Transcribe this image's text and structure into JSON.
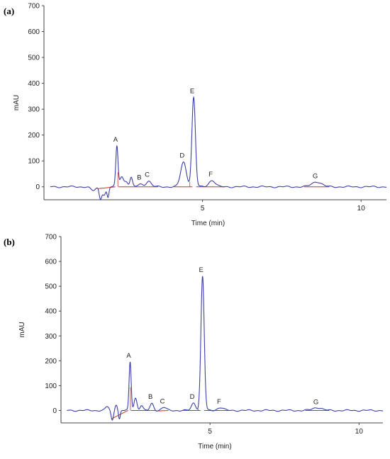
{
  "chart_data": [
    {
      "type": "line",
      "panel_label": "(a)",
      "xlabel": "Time (min)",
      "ylabel": "mAU",
      "xlim": [
        0.0,
        10.8
      ],
      "ylim": [
        -50,
        700
      ],
      "x_ticks": [
        5,
        10
      ],
      "y_ticks": [
        0,
        100,
        200,
        300,
        400,
        500,
        600,
        700
      ],
      "trace_color": "#3b3fa8",
      "baseline_color": "#d03030",
      "baseline_y": 0,
      "noise": [
        {
          "t": 1.55,
          "a": -15,
          "w": 0.08
        },
        {
          "t": 1.78,
          "a": -45,
          "w": 0.04
        },
        {
          "t": 1.9,
          "a": -30,
          "w": 0.05
        },
        {
          "t": 2.02,
          "a": -40,
          "w": 0.03
        },
        {
          "t": 2.45,
          "a": 40,
          "w": 0.06
        },
        {
          "t": 2.6,
          "a": 20,
          "w": 0.05
        },
        {
          "t": 2.75,
          "a": 35,
          "w": 0.04
        }
      ],
      "peaks": [
        {
          "label": "A",
          "time": 2.3,
          "height": 155,
          "width": 0.035
        },
        {
          "label": "B",
          "time": 3.05,
          "height": 10,
          "width": 0.08
        },
        {
          "label": "C",
          "time": 3.3,
          "height": 22,
          "width": 0.08
        },
        {
          "label": "D",
          "time": 4.4,
          "height": 95,
          "width": 0.09
        },
        {
          "label": "E",
          "time": 4.72,
          "height": 345,
          "width": 0.055
        },
        {
          "label": "F",
          "time": 5.3,
          "height": 25,
          "width": 0.1
        },
        {
          "label": "G",
          "time": 8.6,
          "height": 20,
          "width": 0.15
        }
      ]
    },
    {
      "type": "line",
      "panel_label": "(b)",
      "xlabel": "Time (min)",
      "ylabel": "mAU",
      "xlim": [
        0.0,
        10.8
      ],
      "ylim": [
        -50,
        700
      ],
      "x_ticks": [
        5,
        10
      ],
      "y_ticks": [
        0,
        100,
        200,
        300,
        400,
        500,
        600,
        700
      ],
      "trace_color": "#3b3fa8",
      "baseline_color": "#d03030",
      "baseline_y": 0,
      "noise": [
        {
          "t": 1.55,
          "a": 15,
          "w": 0.06
        },
        {
          "t": 1.72,
          "a": -40,
          "w": 0.04
        },
        {
          "t": 1.85,
          "a": 25,
          "w": 0.04
        },
        {
          "t": 1.96,
          "a": -35,
          "w": 0.03
        },
        {
          "t": 2.5,
          "a": 50,
          "w": 0.05
        },
        {
          "t": 2.7,
          "a": 20,
          "w": 0.05
        }
      ],
      "peaks": [
        {
          "label": "A",
          "time": 2.32,
          "height": 195,
          "width": 0.035
        },
        {
          "label": "B",
          "time": 3.05,
          "height": 28,
          "width": 0.06
        },
        {
          "label": "C",
          "time": 3.45,
          "height": 12,
          "width": 0.08
        },
        {
          "label": "D",
          "time": 4.45,
          "height": 30,
          "width": 0.07
        },
        {
          "label": "E",
          "time": 4.75,
          "height": 540,
          "width": 0.055
        },
        {
          "label": "F",
          "time": 5.35,
          "height": 12,
          "width": 0.1
        },
        {
          "label": "G",
          "time": 8.6,
          "height": 12,
          "width": 0.15
        }
      ]
    }
  ]
}
